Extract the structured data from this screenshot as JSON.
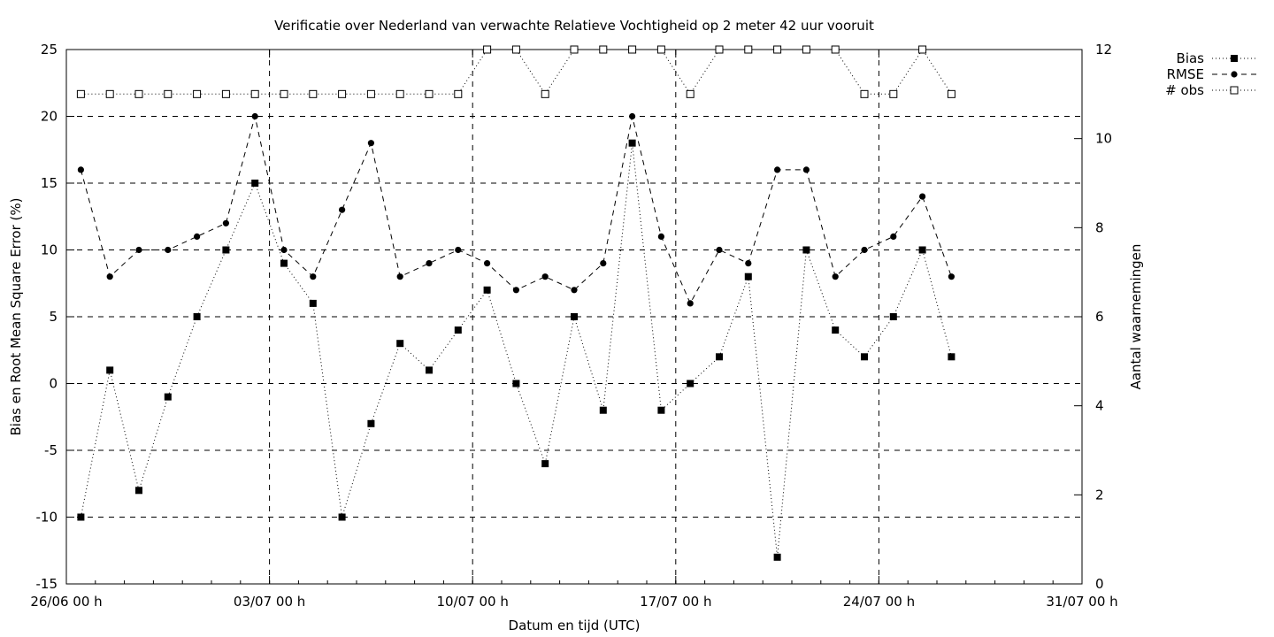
{
  "chart_data": {
    "type": "line",
    "title": "Verificatie over Nederland van verwachte Relatieve Vochtigheid op 2 meter 42 uur vooruit",
    "xlabel": "Datum en tijd (UTC)",
    "ylabel": "Bias en Root Mean Square Error (%)",
    "y2label": "Aantal waarnemingen",
    "x_tick_labels": [
      "26/06 00 h",
      "03/07 00 h",
      "10/07 00 h",
      "17/07 00 h",
      "24/07 00 h",
      "31/07 00 h"
    ],
    "y_tick_labels": [
      "-15",
      "-10",
      "-5",
      "0",
      "5",
      "10",
      "15",
      "20",
      "25"
    ],
    "y2_tick_labels": [
      "0",
      "2",
      "4",
      "6",
      "8",
      "10",
      "12"
    ],
    "xlim": [
      "26/06 00 h",
      "31/07 00 h"
    ],
    "ylim": [
      -15,
      25
    ],
    "y2lim": [
      0,
      12
    ],
    "grid": true,
    "legend_position": "top-right outside",
    "x": [
      "26/06 12 h",
      "27/06 12 h",
      "28/06 12 h",
      "29/06 12 h",
      "30/06 12 h",
      "01/07 12 h",
      "02/07 12 h",
      "03/07 12 h",
      "04/07 12 h",
      "05/07 12 h",
      "06/07 12 h",
      "07/07 12 h",
      "08/07 12 h",
      "09/07 12 h",
      "10/07 12 h",
      "11/07 12 h",
      "12/07 12 h",
      "13/07 12 h",
      "14/07 12 h",
      "15/07 12 h",
      "16/07 12 h",
      "17/07 12 h",
      "18/07 12 h",
      "19/07 12 h",
      "20/07 12 h",
      "21/07 12 h",
      "22/07 12 h",
      "23/07 12 h",
      "24/07 12 h",
      "25/07 12 h",
      "26/07 12 h"
    ],
    "series": [
      {
        "name": "Bias",
        "axis": "y",
        "marker": "filled-square",
        "line": "dotted",
        "values": [
          -10,
          1,
          -8,
          -1,
          5,
          10,
          15,
          9,
          6,
          -10,
          -3,
          3,
          1,
          4,
          7,
          0,
          -6,
          5,
          -2,
          18,
          -2,
          0,
          2,
          8,
          -13,
          10,
          4,
          2,
          5,
          10,
          2
        ]
      },
      {
        "name": "RMSE",
        "axis": "y",
        "marker": "filled-circle",
        "line": "dashed",
        "values": [
          16,
          8,
          10,
          10,
          11,
          12,
          20,
          10,
          8,
          13,
          18,
          8,
          9,
          10,
          9,
          7,
          8,
          7,
          9,
          20,
          11,
          6,
          10,
          9,
          16,
          16,
          8,
          10,
          11,
          14,
          8
        ]
      },
      {
        "name": "# obs",
        "axis": "y2",
        "marker": "open-square",
        "line": "dotted",
        "values": [
          11,
          11,
          11,
          11,
          11,
          11,
          11,
          11,
          11,
          11,
          11,
          11,
          11,
          11,
          12,
          12,
          11,
          12,
          12,
          12,
          12,
          11,
          12,
          12,
          12,
          12,
          12,
          11,
          11,
          12,
          11
        ]
      }
    ]
  }
}
